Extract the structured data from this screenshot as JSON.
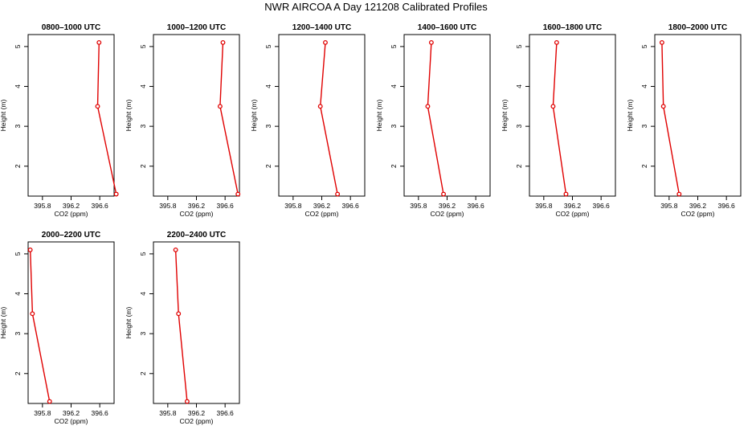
{
  "title": "NWR AIRCOA A  Day 121208  Calibrated Profiles",
  "chart_data": [
    {
      "type": "line",
      "title": "0800–1000 UTC",
      "xlabel": "CO2 (ppm)",
      "ylabel": "Height (m)",
      "xlim": [
        395.6,
        396.8
      ],
      "ylim": [
        1.25,
        5.3
      ],
      "xticks": [
        395.8,
        396.2,
        396.6
      ],
      "yticks": [
        2,
        3,
        4,
        5
      ],
      "x": [
        396.59,
        396.57,
        396.83
      ],
      "y": [
        5.1,
        3.5,
        1.3
      ]
    },
    {
      "type": "line",
      "title": "1000–1200 UTC",
      "xlabel": "CO2 (ppm)",
      "ylabel": "Height (m)",
      "xlim": [
        395.6,
        396.8
      ],
      "ylim": [
        1.25,
        5.3
      ],
      "xticks": [
        395.8,
        396.2,
        396.6
      ],
      "yticks": [
        2,
        3,
        4,
        5
      ],
      "x": [
        396.57,
        396.53,
        396.78
      ],
      "y": [
        5.1,
        3.5,
        1.3
      ]
    },
    {
      "type": "line",
      "title": "1200–1400 UTC",
      "xlabel": "CO2 (ppm)",
      "ylabel": "Height (m)",
      "xlim": [
        395.6,
        396.8
      ],
      "ylim": [
        1.25,
        5.3
      ],
      "xticks": [
        395.8,
        396.2,
        396.6
      ],
      "yticks": [
        2,
        3,
        4,
        5
      ],
      "x": [
        396.25,
        396.18,
        396.42
      ],
      "y": [
        5.1,
        3.5,
        1.3
      ]
    },
    {
      "type": "line",
      "title": "1400–1600 UTC",
      "xlabel": "CO2 (ppm)",
      "ylabel": "Height (m)",
      "xlim": [
        395.6,
        396.8
      ],
      "ylim": [
        1.25,
        5.3
      ],
      "xticks": [
        395.8,
        396.2,
        396.6
      ],
      "yticks": [
        2,
        3,
        4,
        5
      ],
      "x": [
        395.98,
        395.93,
        396.15
      ],
      "y": [
        5.1,
        3.5,
        1.3
      ]
    },
    {
      "type": "line",
      "title": "1600–1800 UTC",
      "xlabel": "CO2 (ppm)",
      "ylabel": "Height (m)",
      "xlim": [
        395.6,
        396.8
      ],
      "ylim": [
        1.25,
        5.3
      ],
      "xticks": [
        395.8,
        396.2,
        396.6
      ],
      "yticks": [
        2,
        3,
        4,
        5
      ],
      "x": [
        395.98,
        395.93,
        396.11
      ],
      "y": [
        5.1,
        3.5,
        1.3
      ]
    },
    {
      "type": "line",
      "title": "1800–2000 UTC",
      "xlabel": "CO2 (ppm)",
      "ylabel": "Height (m)",
      "xlim": [
        395.6,
        396.8
      ],
      "ylim": [
        1.25,
        5.3
      ],
      "xticks": [
        395.8,
        396.2,
        396.6
      ],
      "yticks": [
        2,
        3,
        4,
        5
      ],
      "x": [
        395.7,
        395.72,
        395.94
      ],
      "y": [
        5.1,
        3.5,
        1.3
      ]
    },
    {
      "type": "line",
      "title": "2000–2200 UTC",
      "xlabel": "CO2 (ppm)",
      "ylabel": "Height (m)",
      "xlim": [
        395.6,
        396.8
      ],
      "ylim": [
        1.25,
        5.3
      ],
      "xticks": [
        395.8,
        396.2,
        396.6
      ],
      "yticks": [
        2,
        3,
        4,
        5
      ],
      "x": [
        395.63,
        395.66,
        395.9
      ],
      "y": [
        5.1,
        3.5,
        1.3
      ]
    },
    {
      "type": "line",
      "title": "2200–2400 UTC",
      "xlabel": "CO2 (ppm)",
      "ylabel": "Height (m)",
      "xlim": [
        395.6,
        396.8
      ],
      "ylim": [
        1.25,
        5.3
      ],
      "xticks": [
        395.8,
        396.2,
        396.6
      ],
      "yticks": [
        2,
        3,
        4,
        5
      ],
      "x": [
        395.91,
        395.95,
        396.07
      ],
      "y": [
        5.1,
        3.5,
        1.3
      ]
    }
  ]
}
